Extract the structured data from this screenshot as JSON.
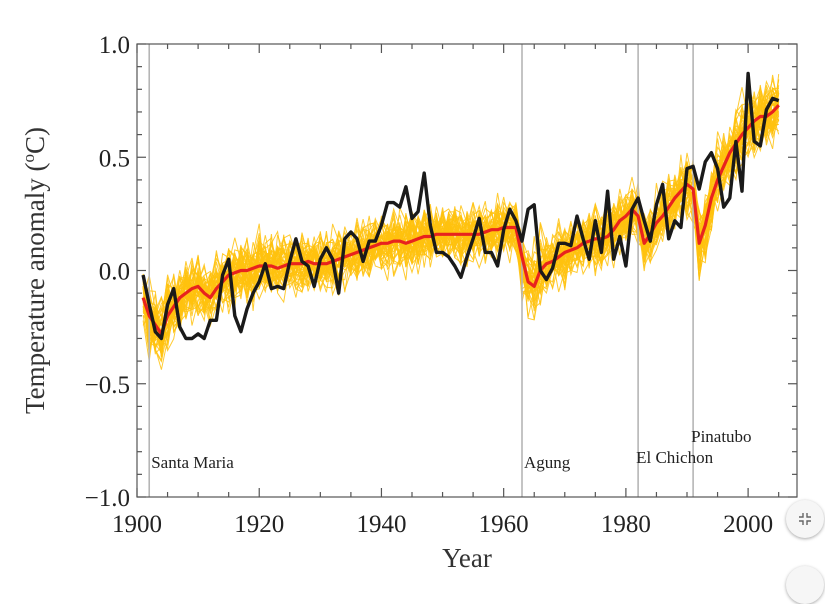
{
  "chart_data": {
    "type": "line",
    "title": "",
    "xlabel": "Year",
    "ylabel_main": "Temperature anomaly (",
    "ylabel_sup": "o",
    "ylabel_tail": "C)",
    "xlim": [
      1900,
      2008
    ],
    "ylim": [
      -1.0,
      1.0
    ],
    "grid": false,
    "legend": "none",
    "x_ticks": [
      {
        "value": 1900,
        "label": "1900"
      },
      {
        "value": 1920,
        "label": "1920"
      },
      {
        "value": 1940,
        "label": "1940"
      },
      {
        "value": 1960,
        "label": "1960"
      },
      {
        "value": 1980,
        "label": "1980"
      },
      {
        "value": 2000,
        "label": "2000"
      }
    ],
    "y_ticks": [
      {
        "value": 1.0,
        "label": "1.0"
      },
      {
        "value": 0.5,
        "label": "0.5"
      },
      {
        "value": 0.0,
        "label": "0.0"
      },
      {
        "value": -0.5,
        "label": "−0.5"
      },
      {
        "value": -1.0,
        "label": "−1.0"
      }
    ],
    "volcanoes": [
      {
        "name": "Santa Maria",
        "year": 1902
      },
      {
        "name": "Agung",
        "year": 1963
      },
      {
        "name": "El Chichon",
        "year": 1982
      },
      {
        "name": "Pinatubo",
        "year": 1991
      }
    ],
    "series": [
      {
        "role": "ensemble_mean",
        "color": "#e8231e",
        "x": [
          1901,
          1902,
          1903,
          1904,
          1905,
          1906,
          1907,
          1908,
          1909,
          1910,
          1911,
          1912,
          1913,
          1914,
          1915,
          1916,
          1917,
          1918,
          1919,
          1920,
          1921,
          1922,
          1923,
          1924,
          1925,
          1926,
          1927,
          1928,
          1929,
          1930,
          1931,
          1932,
          1933,
          1934,
          1935,
          1936,
          1937,
          1938,
          1939,
          1940,
          1941,
          1942,
          1943,
          1944,
          1945,
          1946,
          1947,
          1948,
          1949,
          1950,
          1951,
          1952,
          1953,
          1954,
          1955,
          1956,
          1957,
          1958,
          1959,
          1960,
          1961,
          1962,
          1963,
          1964,
          1965,
          1966,
          1967,
          1968,
          1969,
          1970,
          1971,
          1972,
          1973,
          1974,
          1975,
          1976,
          1977,
          1978,
          1979,
          1980,
          1981,
          1982,
          1983,
          1984,
          1985,
          1986,
          1987,
          1988,
          1989,
          1990,
          1991,
          1992,
          1993,
          1994,
          1995,
          1996,
          1997,
          1998,
          1999,
          2000,
          2001,
          2002,
          2003,
          2004,
          2005
        ],
        "y": [
          -0.12,
          -0.2,
          -0.24,
          -0.28,
          -0.2,
          -0.16,
          -0.12,
          -0.1,
          -0.08,
          -0.07,
          -0.1,
          -0.12,
          -0.08,
          -0.05,
          -0.02,
          -0.01,
          0.0,
          0.0,
          0.01,
          0.02,
          0.02,
          0.02,
          0.01,
          0.02,
          0.03,
          0.03,
          0.03,
          0.04,
          0.03,
          0.03,
          0.03,
          0.04,
          0.05,
          0.06,
          0.07,
          0.08,
          0.09,
          0.1,
          0.11,
          0.12,
          0.12,
          0.13,
          0.13,
          0.12,
          0.13,
          0.14,
          0.15,
          0.15,
          0.16,
          0.16,
          0.16,
          0.16,
          0.16,
          0.16,
          0.16,
          0.16,
          0.17,
          0.18,
          0.18,
          0.19,
          0.19,
          0.19,
          0.06,
          -0.05,
          -0.07,
          0.0,
          0.03,
          0.04,
          0.06,
          0.08,
          0.09,
          0.1,
          0.12,
          0.13,
          0.14,
          0.14,
          0.15,
          0.18,
          0.22,
          0.24,
          0.27,
          0.24,
          0.12,
          0.16,
          0.21,
          0.24,
          0.28,
          0.32,
          0.35,
          0.38,
          0.36,
          0.12,
          0.2,
          0.32,
          0.4,
          0.46,
          0.52,
          0.56,
          0.6,
          0.63,
          0.66,
          0.68,
          0.68,
          0.7,
          0.73
        ]
      },
      {
        "role": "observations",
        "color": "#1a1a1a",
        "x": [
          1901,
          1902,
          1903,
          1904,
          1905,
          1906,
          1907,
          1908,
          1909,
          1910,
          1911,
          1912,
          1913,
          1914,
          1915,
          1916,
          1917,
          1918,
          1919,
          1920,
          1921,
          1922,
          1923,
          1924,
          1925,
          1926,
          1927,
          1928,
          1929,
          1930,
          1931,
          1932,
          1933,
          1934,
          1935,
          1936,
          1937,
          1938,
          1939,
          1940,
          1941,
          1942,
          1943,
          1944,
          1945,
          1946,
          1947,
          1948,
          1949,
          1950,
          1951,
          1952,
          1953,
          1954,
          1955,
          1956,
          1957,
          1958,
          1959,
          1960,
          1961,
          1962,
          1963,
          1964,
          1965,
          1966,
          1967,
          1968,
          1969,
          1970,
          1971,
          1972,
          1973,
          1974,
          1975,
          1976,
          1977,
          1978,
          1979,
          1980,
          1981,
          1982,
          1983,
          1984,
          1985,
          1986,
          1987,
          1988,
          1989,
          1990,
          1991,
          1992,
          1993,
          1994,
          1995,
          1996,
          1997,
          1998,
          1999,
          2000,
          2001,
          2002,
          2003,
          2004,
          2005
        ],
        "y": [
          -0.02,
          -0.15,
          -0.27,
          -0.3,
          -0.15,
          -0.08,
          -0.25,
          -0.3,
          -0.3,
          -0.28,
          -0.3,
          -0.22,
          -0.22,
          -0.02,
          0.05,
          -0.2,
          -0.27,
          -0.17,
          -0.1,
          -0.05,
          0.03,
          -0.08,
          -0.07,
          -0.08,
          0.04,
          0.14,
          0.04,
          0.02,
          -0.07,
          0.05,
          0.1,
          0.05,
          -0.1,
          0.14,
          0.17,
          0.14,
          0.04,
          0.13,
          0.13,
          0.2,
          0.3,
          0.3,
          0.28,
          0.37,
          0.23,
          0.26,
          0.43,
          0.2,
          0.08,
          0.08,
          0.06,
          0.02,
          -0.03,
          0.06,
          0.14,
          0.23,
          0.08,
          0.08,
          0.02,
          0.18,
          0.27,
          0.22,
          0.13,
          0.27,
          0.29,
          0.0,
          -0.04,
          0.01,
          0.12,
          0.12,
          0.11,
          0.24,
          0.14,
          0.05,
          0.22,
          0.08,
          0.35,
          0.05,
          0.15,
          0.02,
          0.27,
          0.32,
          0.22,
          0.13,
          0.29,
          0.38,
          0.14,
          0.22,
          0.19,
          0.45,
          0.46,
          0.36,
          0.48,
          0.52,
          0.45,
          0.28,
          0.32,
          0.57,
          0.35,
          0.87,
          0.57,
          0.55,
          0.71,
          0.76,
          0.75
        ]
      }
    ]
  },
  "ui": {
    "fullscreen_toggle_icon": "compress-arrows-icon"
  }
}
